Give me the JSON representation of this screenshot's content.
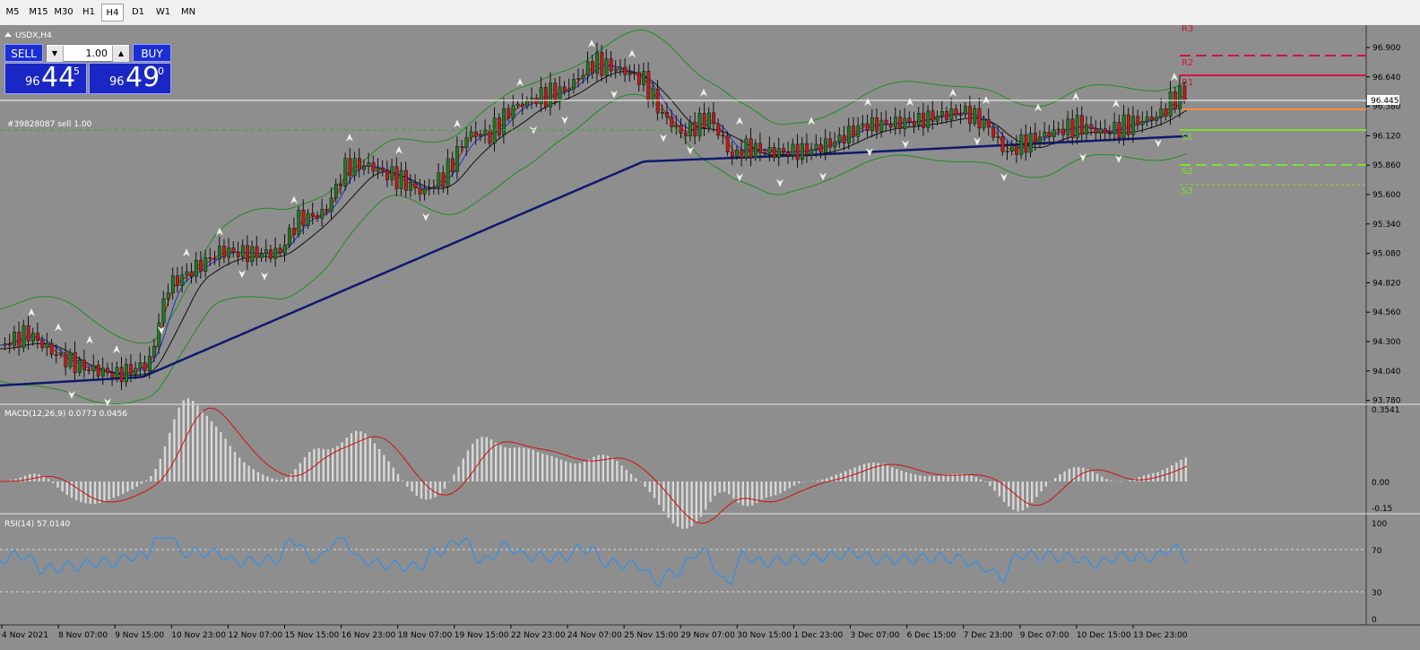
{
  "timeframes": [
    "M5",
    "M15",
    "M30",
    "H1",
    "H4",
    "D1",
    "W1",
    "MN"
  ],
  "active_timeframe": "H4",
  "chart": {
    "symbol_label": "USDX,H4",
    "order_label": "#39828087 sell 1.00",
    "price_ticks": [
      "96.900",
      "96.640",
      "96.380",
      "96.120",
      "95.860",
      "95.600",
      "95.340",
      "95.080",
      "94.820",
      "94.560",
      "94.300",
      "94.040",
      "93.780"
    ],
    "current_price": "96.445",
    "pivot_labels": [
      "R3",
      "R2",
      "R1",
      "S1",
      "S2",
      "S3"
    ],
    "date_ticks": [
      "4 Nov 2021",
      "8 Nov 07:00",
      "9 Nov 15:00",
      "10 Nov 23:00",
      "12 Nov 07:00",
      "15 Nov 15:00",
      "16 Nov 23:00",
      "18 Nov 07:00",
      "19 Nov 15:00",
      "22 Nov 23:00",
      "24 Nov 07:00",
      "25 Nov 15:00",
      "29 Nov 07:00",
      "30 Nov 15:00",
      "1 Dec 23:00",
      "3 Dec 07:00",
      "6 Dec 15:00",
      "7 Dec 23:00",
      "9 Dec 07:00",
      "10 Dec 15:00",
      "13 Dec 23:00"
    ],
    "colors": {
      "background": "#8e8e8e",
      "bull_candle": "#1f7a1f",
      "bear_candle": "#c21a1a",
      "ma_fast": "#d01010",
      "ma_mid": "#1f2fd0",
      "ma_slow": "#111111",
      "ma_long": "#0f1a6e",
      "bands": "#228b22",
      "r_levels": "#d0143c",
      "s_levels": "#7fe02a",
      "pivot": "#ff8c42"
    }
  },
  "trade_panel": {
    "sell_label": "SELL",
    "buy_label": "BUY",
    "lot": "1.00",
    "bid_prefix": "96",
    "bid_big": "44",
    "bid_sup": "5",
    "ask_prefix": "96",
    "ask_big": "49",
    "ask_sup": "0"
  },
  "macd": {
    "label": "MACD(12,26,9) 0.0773 0.0456",
    "ticks": [
      "0.3541",
      "0.00",
      "-0.15"
    ]
  },
  "rsi": {
    "label": "RSI(14) 57.0140",
    "ticks": [
      "100",
      "70",
      "30",
      "0"
    ]
  }
}
